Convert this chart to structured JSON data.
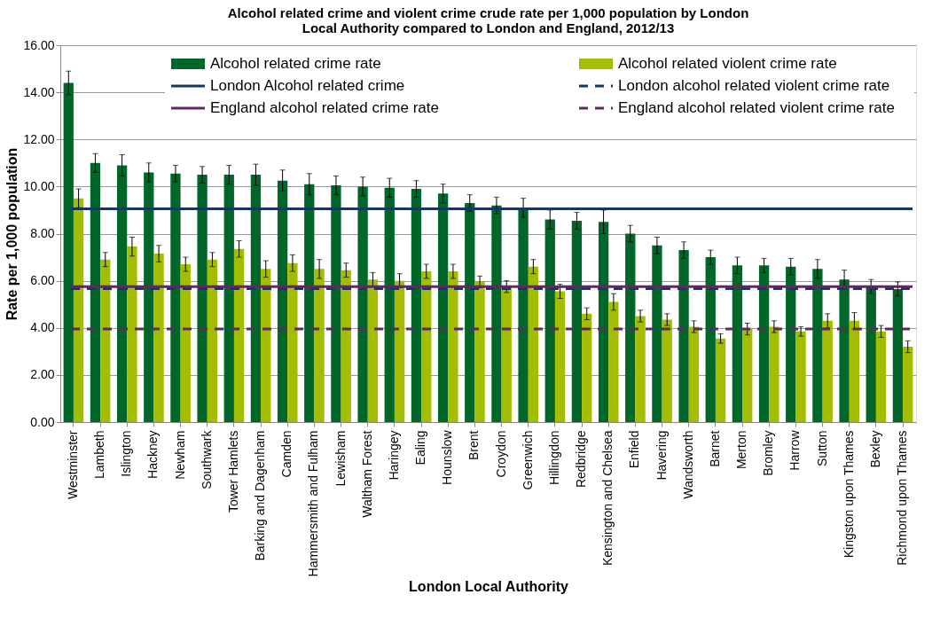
{
  "chart_data": {
    "type": "bar",
    "title": "Alcohol related crime and violent crime crude rate per 1,000 population by London Local Authority compared to London and England, 2012/13",
    "xlabel": "London Local Authority",
    "ylabel": "Rate per 1,000 population",
    "categories": [
      "Westminster",
      "Lambeth",
      "Islington",
      "Hackney",
      "Newham",
      "Southwark",
      "Tower Hamlets",
      "Barking and Dagenham",
      "Camden",
      "Hammersmith and Fulham",
      "Lewisham",
      "Waltham Forest",
      "Haringey",
      "Ealing",
      "Hounslow",
      "Brent",
      "Croydon",
      "Greenwich",
      "Hillingdon",
      "Redbridge",
      "Kensington and Chelsea",
      "Enfield",
      "Havering",
      "Wandsworth",
      "Barnet",
      "Merton",
      "Bromley",
      "Harrow",
      "Sutton",
      "Kingston upon Thames",
      "Bexley",
      "Richmond upon Thames"
    ],
    "series": [
      {
        "name": "Alcohol related crime rate",
        "color": "#006629",
        "values": [
          14.4,
          11.0,
          10.9,
          10.6,
          10.55,
          10.5,
          10.5,
          10.5,
          10.25,
          10.1,
          10.05,
          10.0,
          9.95,
          9.9,
          9.7,
          9.3,
          9.2,
          9.1,
          8.6,
          8.55,
          8.5,
          8.0,
          7.5,
          7.3,
          7.0,
          6.65,
          6.65,
          6.6,
          6.5,
          6.05,
          5.75,
          5.65
        ],
        "errors": [
          0.5,
          0.4,
          0.45,
          0.4,
          0.35,
          0.35,
          0.4,
          0.45,
          0.45,
          0.45,
          0.4,
          0.4,
          0.4,
          0.35,
          0.4,
          0.35,
          0.35,
          0.4,
          0.4,
          0.35,
          0.5,
          0.35,
          0.35,
          0.35,
          0.3,
          0.35,
          0.3,
          0.35,
          0.4,
          0.4,
          0.3,
          0.3
        ]
      },
      {
        "name": "Alcohol related violent crime rate",
        "color": "#a5bd00",
        "values": [
          9.5,
          6.9,
          7.45,
          7.15,
          6.7,
          6.9,
          7.35,
          6.5,
          6.75,
          6.5,
          6.45,
          6.05,
          6.0,
          6.4,
          6.4,
          5.95,
          5.75,
          6.6,
          5.55,
          4.6,
          5.1,
          4.5,
          4.35,
          4.05,
          3.55,
          3.95,
          4.05,
          3.85,
          4.3,
          4.3,
          3.85,
          3.2
        ],
        "errors": [
          0.4,
          0.3,
          0.4,
          0.35,
          0.3,
          0.3,
          0.35,
          0.35,
          0.35,
          0.4,
          0.3,
          0.3,
          0.3,
          0.3,
          0.3,
          0.25,
          0.25,
          0.3,
          0.3,
          0.25,
          0.35,
          0.25,
          0.25,
          0.25,
          0.2,
          0.25,
          0.25,
          0.2,
          0.3,
          0.35,
          0.25,
          0.25
        ]
      }
    ],
    "ref_lines": [
      {
        "axis": "y",
        "value": 9.05,
        "label": "London Alcohol related crime",
        "color": "#17375e",
        "line_style": "solid"
      },
      {
        "axis": "y",
        "value": 5.67,
        "label": "London alcohol related violent crime rate",
        "color": "#17375e",
        "line_style": "dashed"
      },
      {
        "axis": "y",
        "value": 5.75,
        "label": "England alcohol related crime rate",
        "color": "#5f2a5f",
        "line_style": "solid"
      },
      {
        "axis": "y",
        "value": 3.95,
        "label": "England alcohol related violent crime rate",
        "color": "#5f2a5f",
        "line_style": "dashed"
      }
    ],
    "ylim": [
      0,
      16
    ],
    "yticks": [
      {
        "value": 0,
        "label": "0.00"
      },
      {
        "value": 2,
        "label": "2.00"
      },
      {
        "value": 4,
        "label": "4.00"
      },
      {
        "value": 6,
        "label": "6.00"
      },
      {
        "value": 8,
        "label": "8.00"
      },
      {
        "value": 10,
        "label": "10.00"
      },
      {
        "value": 12,
        "label": "12.00"
      },
      {
        "value": 14,
        "label": "14.00"
      },
      {
        "value": 16,
        "label": "16.00"
      }
    ],
    "grid": "y",
    "legend": "top"
  }
}
